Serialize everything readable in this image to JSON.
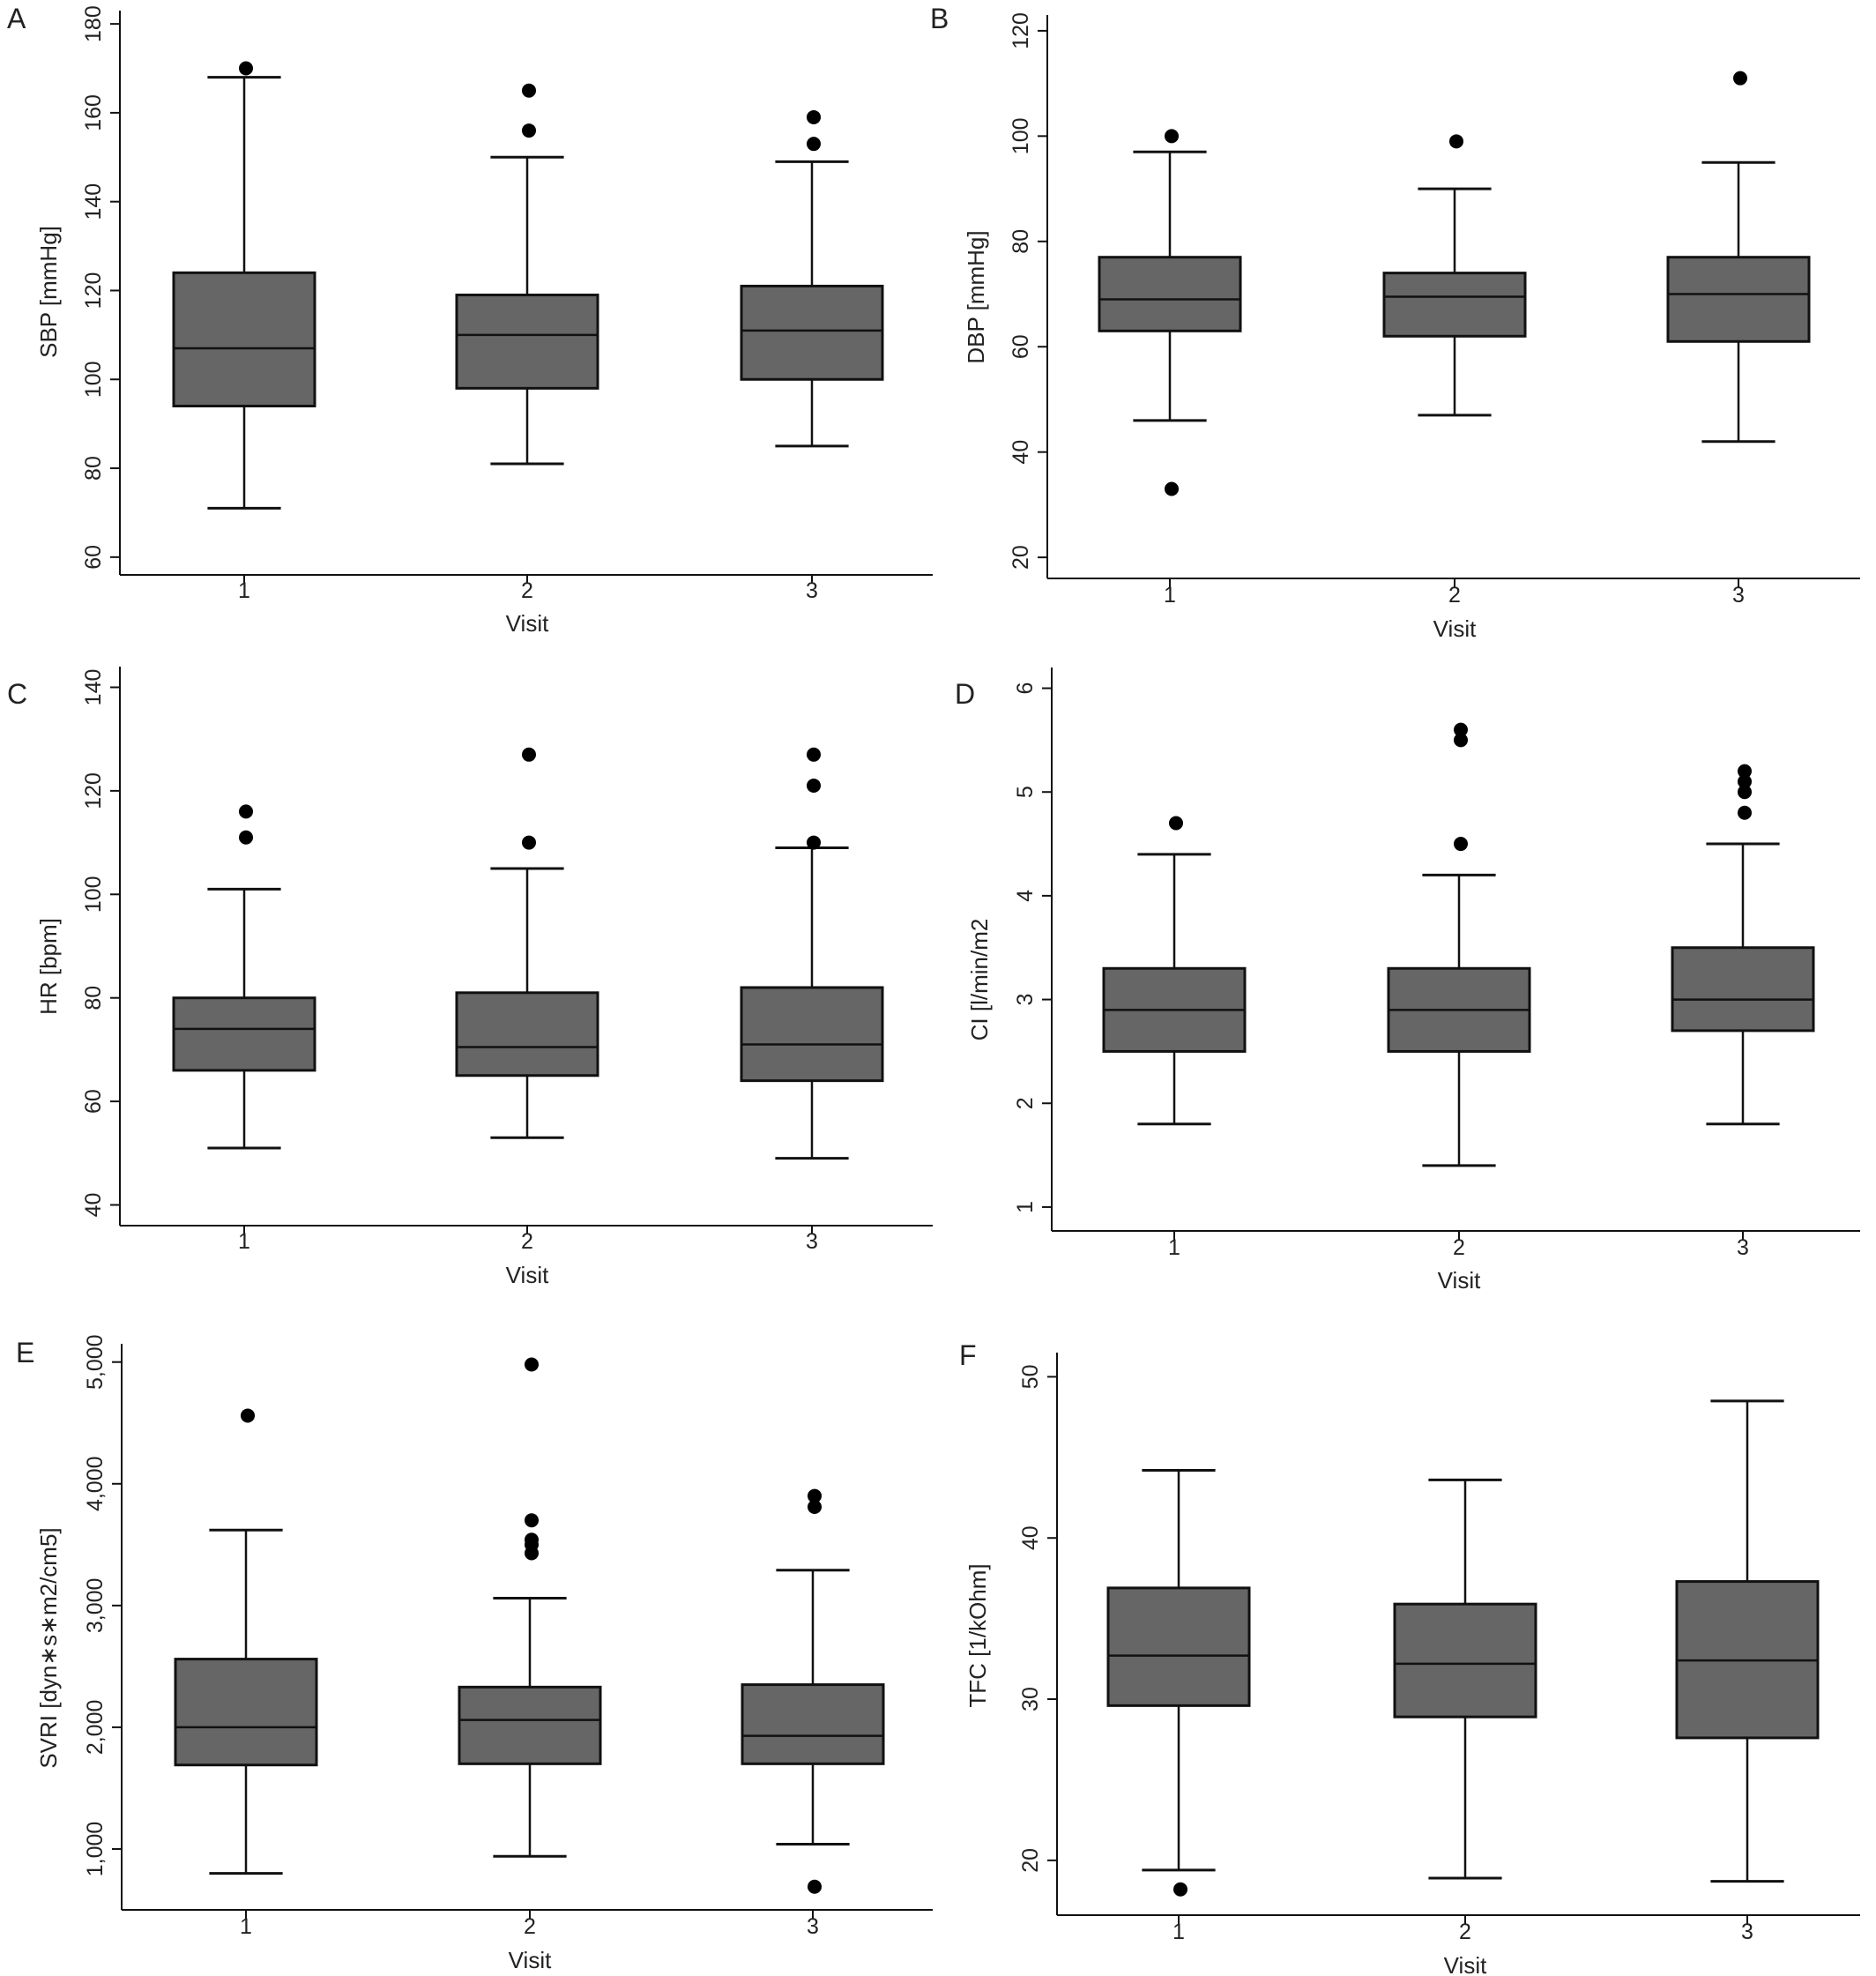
{
  "figure": {
    "box_color": "#666666",
    "line_color": "#111111",
    "outlier_color": "#000000"
  },
  "chart_data": [
    {
      "type": "box",
      "panel_label": "A",
      "xlabel": "Visit",
      "ylabel": "SBP [mmHg]",
      "categories": [
        "1",
        "2",
        "3"
      ],
      "ylim": [
        56,
        183
      ],
      "yticks": [
        60,
        80,
        100,
        120,
        140,
        160,
        180
      ],
      "ytick_labels": [
        "60",
        "80",
        "100",
        "120",
        "140",
        "160",
        "180"
      ],
      "boxes": [
        {
          "category": "1",
          "whisker_low": 71,
          "q1": 94,
          "median": 107,
          "q3": 124,
          "whisker_high": 168,
          "outliers": [
            170
          ]
        },
        {
          "category": "2",
          "whisker_low": 81,
          "q1": 98,
          "median": 110,
          "q3": 119,
          "whisker_high": 150,
          "outliers": [
            156,
            165
          ]
        },
        {
          "category": "3",
          "whisker_low": 85,
          "q1": 100,
          "median": 111,
          "q3": 121,
          "whisker_high": 149,
          "outliers": [
            153,
            159
          ]
        }
      ]
    },
    {
      "type": "box",
      "panel_label": "B",
      "xlabel": "Visit",
      "ylabel": "DBP [mmHg]",
      "categories": [
        "1",
        "2",
        "3"
      ],
      "ylim": [
        16,
        123
      ],
      "yticks": [
        20,
        40,
        60,
        80,
        100,
        120
      ],
      "ytick_labels": [
        "20",
        "40",
        "60",
        "80",
        "100",
        "120"
      ],
      "boxes": [
        {
          "category": "1",
          "whisker_low": 46,
          "q1": 63,
          "median": 69,
          "q3": 77,
          "whisker_high": 97,
          "outliers": [
            33,
            100
          ]
        },
        {
          "category": "2",
          "whisker_low": 47,
          "q1": 62,
          "median": 69.5,
          "q3": 74,
          "whisker_high": 90,
          "outliers": [
            99
          ]
        },
        {
          "category": "3",
          "whisker_low": 42,
          "q1": 61,
          "median": 70,
          "q3": 77,
          "whisker_high": 95,
          "outliers": [
            111
          ]
        }
      ]
    },
    {
      "type": "box",
      "panel_label": "C",
      "xlabel": "Visit",
      "ylabel": "HR [bpm]",
      "categories": [
        "1",
        "2",
        "3"
      ],
      "ylim": [
        36,
        144
      ],
      "yticks": [
        40,
        60,
        80,
        100,
        120,
        140
      ],
      "ytick_labels": [
        "40",
        "60",
        "80",
        "100",
        "120",
        "140"
      ],
      "boxes": [
        {
          "category": "1",
          "whisker_low": 51,
          "q1": 66,
          "median": 74,
          "q3": 80,
          "whisker_high": 101,
          "outliers": [
            111,
            116
          ]
        },
        {
          "category": "2",
          "whisker_low": 53,
          "q1": 65,
          "median": 70.5,
          "q3": 81,
          "whisker_high": 105,
          "outliers": [
            110,
            127
          ]
        },
        {
          "category": "3",
          "whisker_low": 49,
          "q1": 64,
          "median": 71,
          "q3": 82,
          "whisker_high": 109,
          "outliers": [
            110,
            121,
            127
          ]
        }
      ]
    },
    {
      "type": "box",
      "panel_label": "D",
      "xlabel": "Visit",
      "ylabel": "CI [l/min/m2",
      "categories": [
        "1",
        "2",
        "3"
      ],
      "ylim": [
        0.77,
        6.2
      ],
      "yticks": [
        1,
        2,
        3,
        4,
        5,
        6
      ],
      "ytick_labels": [
        "1",
        "2",
        "3",
        "4",
        "5",
        "6"
      ],
      "boxes": [
        {
          "category": "1",
          "whisker_low": 1.8,
          "q1": 2.5,
          "median": 2.9,
          "q3": 3.3,
          "whisker_high": 4.4,
          "outliers": [
            4.7
          ]
        },
        {
          "category": "2",
          "whisker_low": 1.4,
          "q1": 2.5,
          "median": 2.9,
          "q3": 3.3,
          "whisker_high": 4.2,
          "outliers": [
            4.5,
            5.5,
            5.6
          ]
        },
        {
          "category": "3",
          "whisker_low": 1.8,
          "q1": 2.7,
          "median": 3.0,
          "q3": 3.5,
          "whisker_high": 4.5,
          "outliers": [
            4.8,
            5.0,
            5.1,
            5.2
          ]
        }
      ]
    },
    {
      "type": "box",
      "panel_label": "E",
      "xlabel": "Visit",
      "ylabel": "SVRI [dyn∗s∗m2/cm5]",
      "categories": [
        "1",
        "2",
        "3"
      ],
      "ylim": [
        500,
        5150
      ],
      "yticks": [
        1000,
        2000,
        3000,
        4000,
        5000
      ],
      "ytick_labels": [
        "1,000",
        "2,000",
        "3,000",
        "4,000",
        "5,000"
      ],
      "boxes": [
        {
          "category": "1",
          "whisker_low": 800,
          "q1": 1690,
          "median": 2000,
          "q3": 2560,
          "whisker_high": 3620,
          "outliers": [
            4560
          ]
        },
        {
          "category": "2",
          "whisker_low": 940,
          "q1": 1700,
          "median": 2060,
          "q3": 2330,
          "whisker_high": 3060,
          "outliers": [
            3430,
            3500,
            3540,
            3700,
            4980
          ]
        },
        {
          "category": "3",
          "whisker_low": 1040,
          "q1": 1700,
          "median": 1930,
          "q3": 2350,
          "whisker_high": 3290,
          "outliers": [
            690,
            3810,
            3900
          ]
        }
      ]
    },
    {
      "type": "box",
      "panel_label": "F",
      "xlabel": "Visit",
      "ylabel": "TFC [1/kOhm]",
      "categories": [
        "1",
        "2",
        "3"
      ],
      "ylim": [
        16.6,
        51.5
      ],
      "yticks": [
        20,
        30,
        40,
        50
      ],
      "ytick_labels": [
        "20",
        "30",
        "40",
        "50"
      ],
      "boxes": [
        {
          "category": "1",
          "whisker_low": 19.4,
          "q1": 29.6,
          "median": 32.7,
          "q3": 36.9,
          "whisker_high": 44.2,
          "outliers": [
            18.2
          ]
        },
        {
          "category": "2",
          "whisker_low": 18.9,
          "q1": 28.9,
          "median": 32.2,
          "q3": 35.9,
          "whisker_high": 43.6,
          "outliers": []
        },
        {
          "category": "3",
          "whisker_low": 18.7,
          "q1": 27.6,
          "median": 32.4,
          "q3": 37.3,
          "whisker_high": 48.5,
          "outliers": []
        }
      ]
    }
  ]
}
